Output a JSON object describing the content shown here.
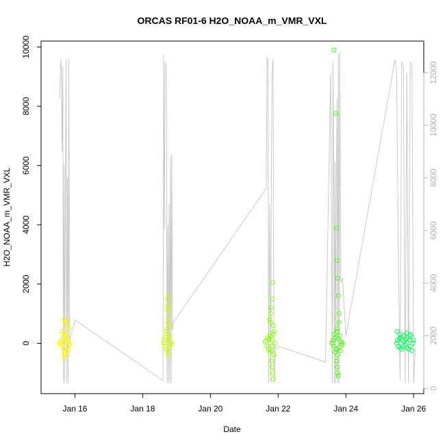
{
  "chart_data": {
    "type": "scatter",
    "title": "ORCAS RF01-6 H2O_NOAA_m_VMR_VXL",
    "xlabel": "Date",
    "ylabel": "H2O_NOAA_m_VMR_VXL",
    "xlim": [
      15.0,
      26.3
    ],
    "ylim": [
      -1700,
      10200
    ],
    "y2lim": [
      -200,
      13200
    ],
    "x_ticks": [
      {
        "value": 16,
        "label": "Jan 16"
      },
      {
        "value": 18,
        "label": "Jan 18"
      },
      {
        "value": 20,
        "label": "Jan 20"
      },
      {
        "value": 22,
        "label": "Jan 22"
      },
      {
        "value": 24,
        "label": "Jan 24"
      },
      {
        "value": 26,
        "label": "Jan 26"
      }
    ],
    "y_ticks": [
      {
        "value": 0,
        "label": "0"
      },
      {
        "value": 2000,
        "label": "2000"
      },
      {
        "value": 4000,
        "label": "4000"
      },
      {
        "value": 6000,
        "label": "6000"
      },
      {
        "value": 8000,
        "label": "8000"
      },
      {
        "value": 10000,
        "label": "10000"
      }
    ],
    "y2_ticks": [
      {
        "value": 0,
        "label": "0"
      },
      {
        "value": 2000,
        "label": "2000"
      },
      {
        "value": 4000,
        "label": "4000"
      },
      {
        "value": 6000,
        "label": "6000"
      },
      {
        "value": 8000,
        "label": "8000"
      },
      {
        "value": 10000,
        "label": "10000"
      },
      {
        "value": 12000,
        "label": "12000"
      }
    ],
    "secondary_series": {
      "axis": "right",
      "color": "#c8c8c8",
      "x": [
        15.55,
        15.58,
        15.6,
        15.62,
        15.64,
        15.66,
        15.68,
        15.7,
        15.72,
        15.74,
        15.76,
        15.78,
        15.8,
        15.82,
        15.84,
        16.0,
        18.6,
        18.62,
        18.64,
        18.66,
        18.7,
        18.72,
        18.74,
        18.76,
        18.78,
        18.8,
        18.82,
        18.84,
        18.86,
        18.88,
        18.9,
        21.65,
        21.67,
        21.7,
        21.72,
        21.75,
        21.78,
        21.8,
        21.82,
        21.85,
        21.88,
        21.92,
        22.0,
        23.4,
        23.55,
        23.6,
        23.62,
        23.64,
        23.66,
        23.68,
        23.7,
        23.72,
        23.74,
        23.76,
        23.78,
        23.8,
        23.82,
        23.85,
        23.9,
        24.0,
        25.45,
        25.5,
        25.55,
        25.6,
        25.65,
        25.7,
        25.75,
        25.8,
        25.85,
        25.9,
        25.95,
        26.0,
        26.05
      ],
      "values": [
        11000,
        12500,
        12300,
        9000,
        12200,
        200,
        8500,
        200,
        7500,
        12500,
        200,
        8000,
        200,
        12500,
        1800,
        2600,
        300,
        12700,
        6000,
        12400,
        12300,
        200,
        6200,
        200,
        7000,
        200,
        8800,
        200,
        8900,
        2200,
        2500,
        7600,
        12600,
        12400,
        200,
        7000,
        200,
        8000,
        12000,
        12500,
        200,
        1500,
        1600,
        1000,
        12000,
        200,
        12400,
        9000,
        200,
        8600,
        200,
        8000,
        11000,
        200,
        12700,
        200,
        12800,
        4000,
        4200,
        2000,
        12500,
        12000,
        5000,
        300,
        12400,
        12200,
        200,
        12000,
        200,
        12400,
        12300,
        200,
        1500
      ]
    },
    "series": [
      {
        "color": "#ffff00",
        "x": [
          15.55,
          15.58,
          15.6,
          15.62,
          15.64,
          15.66,
          15.68,
          15.7,
          15.72,
          15.74,
          15.76,
          15.78,
          15.8,
          15.82,
          15.84,
          15.86,
          15.62,
          15.66,
          15.7,
          15.74,
          15.78,
          15.82,
          15.68,
          15.72,
          15.76,
          15.7,
          15.74
        ],
        "values": [
          0,
          30,
          -50,
          100,
          -100,
          200,
          -200,
          300,
          -300,
          150,
          -150,
          250,
          -250,
          50,
          -50,
          0,
          400,
          -400,
          350,
          -350,
          600,
          500,
          800,
          700,
          750,
          -500,
          100
        ]
      },
      {
        "color": "#ccff00",
        "x": [
          18.62,
          18.64,
          18.66,
          18.68,
          18.7,
          18.72,
          18.74,
          18.76,
          18.78,
          18.8,
          18.82,
          18.84,
          18.86,
          18.72,
          18.74,
          18.76,
          18.74,
          18.76,
          18.78,
          18.72,
          18.7,
          18.8,
          18.76,
          18.74
        ],
        "values": [
          0,
          100,
          -100,
          200,
          -200,
          300,
          -300,
          150,
          -150,
          250,
          50,
          -50,
          0,
          500,
          700,
          900,
          1100,
          1300,
          1600,
          1500,
          400,
          600,
          -400,
          1200
        ]
      },
      {
        "color": "#88ff00",
        "x": [
          21.62,
          21.65,
          21.68,
          21.7,
          21.72,
          21.74,
          21.76,
          21.78,
          21.8,
          21.82,
          21.84,
          21.86,
          21.88,
          21.9,
          21.75,
          21.78,
          21.8,
          21.82,
          21.84,
          21.86,
          21.8,
          21.82,
          21.84,
          21.86,
          21.88,
          21.78
        ],
        "values": [
          50,
          100,
          -100,
          200,
          -200,
          150,
          -300,
          250,
          -250,
          100,
          -100,
          300,
          -400,
          0,
          800,
          1000,
          1200,
          1500,
          2050,
          600,
          -600,
          -800,
          -1000,
          -1200,
          400,
          700
        ]
      },
      {
        "color": "#44ff00",
        "x": [
          23.6,
          23.62,
          23.64,
          23.66,
          23.68,
          23.7,
          23.72,
          23.74,
          23.76,
          23.78,
          23.8,
          23.82,
          23.84,
          23.86,
          23.88,
          23.9,
          23.65,
          23.7,
          23.72,
          23.74,
          23.76,
          23.78,
          23.8,
          23.72,
          23.74,
          23.76,
          23.78,
          23.75,
          23.8
        ],
        "values": [
          0,
          100,
          -100,
          300,
          -300,
          200,
          -200,
          400,
          -400,
          150,
          -150,
          250,
          -250,
          50,
          -50,
          0,
          9900,
          7750,
          3900,
          2800,
          2200,
          1600,
          1000,
          -600,
          -800,
          -1000,
          -1100,
          500,
          700
        ]
      },
      {
        "color": "#00ff55",
        "x": [
          25.5,
          25.52,
          25.55,
          25.58,
          25.6,
          25.62,
          25.65,
          25.68,
          25.7,
          25.72,
          25.75,
          25.78,
          25.8,
          25.82,
          25.85,
          25.88,
          25.9,
          25.92,
          25.95,
          25.98,
          26.0,
          25.52,
          25.6,
          25.7,
          25.8,
          25.9
        ],
        "values": [
          0,
          100,
          -100,
          150,
          -150,
          200,
          -200,
          100,
          -100,
          50,
          -50,
          150,
          -150,
          200,
          -200,
          100,
          -100,
          250,
          -250,
          0,
          100,
          400,
          300,
          250,
          350,
          300
        ]
      }
    ]
  }
}
